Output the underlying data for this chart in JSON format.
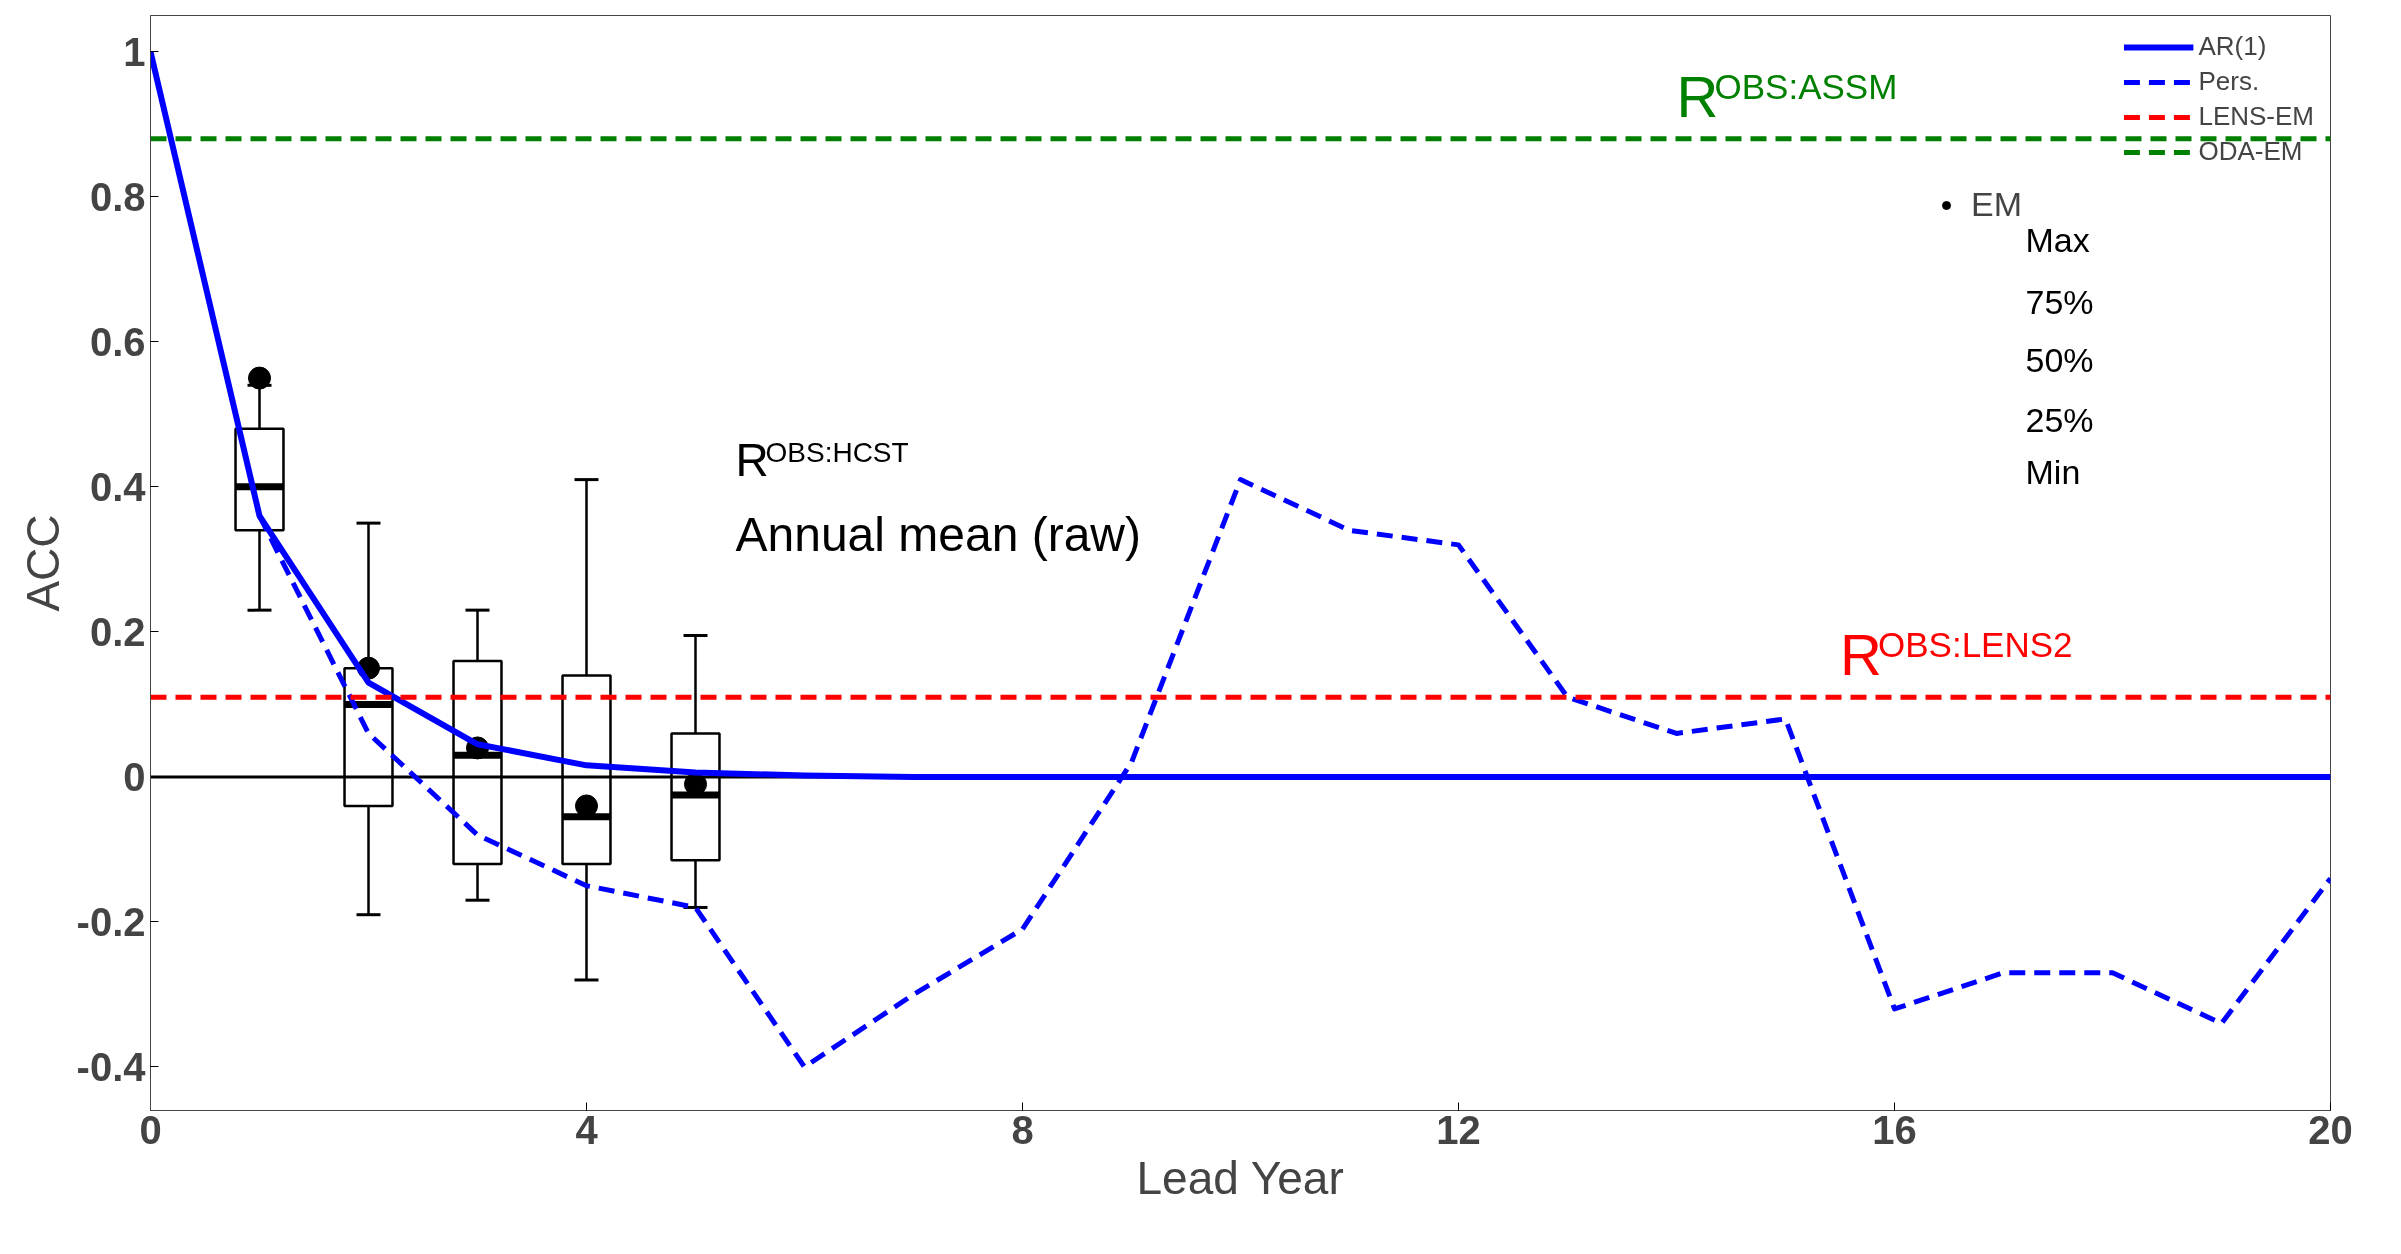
{
  "chart_data": {
    "type": "line",
    "xlabel": "Lead Year",
    "ylabel": "ACC",
    "xlim": [
      0,
      20
    ],
    "ylim": [
      -0.46,
      1.05
    ],
    "xticks": [
      0,
      4,
      8,
      12,
      16,
      20
    ],
    "yticks": [
      {
        "value": -0.4,
        "label": "-0.4"
      },
      {
        "value": -0.2,
        "label": "-0.2"
      },
      0,
      {
        "value": 0.2,
        "label": "0.2"
      },
      {
        "value": 0.4,
        "label": "0.4"
      },
      {
        "value": 0.6,
        "label": "0.6"
      },
      {
        "value": 0.8,
        "label": "0.8"
      },
      1
    ],
    "grid": false,
    "legend": "top right",
    "series": [
      {
        "name": "AR(1)",
        "color": "#0000ff",
        "line_style": "solid",
        "x": [
          0,
          1,
          2,
          3,
          4,
          5,
          6,
          7,
          8,
          9,
          10,
          11,
          12,
          13,
          14,
          15,
          16,
          17,
          18,
          19,
          20
        ],
        "values": [
          1,
          0.36,
          0.13,
          0.045,
          0.016,
          0.006,
          0.002,
          0,
          0,
          0,
          0,
          0,
          0,
          0,
          0,
          0,
          0,
          0,
          0,
          0,
          0
        ]
      },
      {
        "name": "Pers.",
        "color": "#0000ff",
        "line_style": "dashed",
        "x": [
          1,
          2,
          3,
          4,
          5,
          6,
          7,
          8,
          9,
          10,
          11,
          12,
          13,
          14,
          15,
          16,
          17,
          18,
          19,
          20
        ],
        "values": [
          0.36,
          0.06,
          -0.08,
          -0.15,
          -0.18,
          -0.4,
          -0.3,
          -0.21,
          0.02,
          0.41,
          0.34,
          0.32,
          0.11,
          0.06,
          0.08,
          -0.32,
          -0.27,
          -0.27,
          -0.34,
          -0.14
        ]
      },
      {
        "name": "LENS-EM",
        "color": "#ff0000",
        "line_style": "dashed",
        "x": [
          0,
          20
        ],
        "values": [
          0.11,
          0.11
        ]
      },
      {
        "name": "ODA-EM",
        "color": "#008000",
        "line_style": "dashed",
        "x": [
          0,
          20
        ],
        "values": [
          0.88,
          0.88
        ]
      },
      {
        "type": "box",
        "color": "#000000",
        "x": [
          1,
          2,
          3,
          4,
          5
        ],
        "boxes": [
          {
            "low": 0.23,
            "q1": 0.34,
            "median": 0.4,
            "q3": 0.48,
            "high": 0.54
          },
          {
            "low": -0.19,
            "q1": -0.04,
            "median": 0.1,
            "q3": 0.15,
            "high": 0.35
          },
          {
            "low": -0.17,
            "q1": -0.12,
            "median": 0.03,
            "q3": 0.16,
            "high": 0.23
          },
          {
            "low": -0.28,
            "q1": -0.12,
            "median": -0.055,
            "q3": 0.14,
            "high": 0.41
          },
          {
            "low": -0.18,
            "q1": -0.115,
            "median": -0.025,
            "q3": 0.06,
            "high": 0.195
          }
        ]
      },
      {
        "name": "EM",
        "type": "scatter",
        "marker": "circle",
        "color": "#000000",
        "x": [
          1,
          2,
          3,
          4,
          5
        ],
        "values": [
          0.55,
          0.15,
          0.04,
          -0.04,
          -0.01
        ]
      }
    ],
    "ref_lines": [
      {
        "axis": "y",
        "value": 0,
        "color": "#000000",
        "line_style": "solid"
      }
    ],
    "annotations": [
      {
        "text": "R$^{OBS:ASSM}$",
        "x": 14,
        "y": 0.88
      },
      {
        "text": "R$^{OBS:LENS2}$",
        "x": 15.5,
        "y": 0.11
      },
      "R$^{OBS:HCST}$",
      "Annual mean (raw)",
      "Max",
      "75%",
      "50%",
      "25%",
      "Min"
    ]
  }
}
